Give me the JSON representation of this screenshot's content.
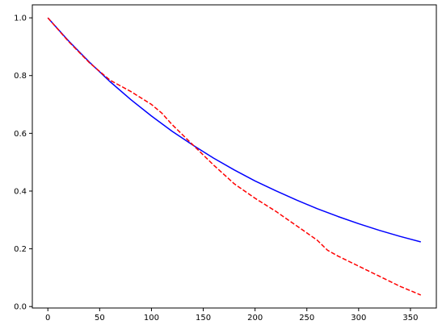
{
  "chart_data": {
    "type": "line",
    "title": "",
    "xlabel": "",
    "ylabel": "",
    "xlim": [
      -15,
      375
    ],
    "ylim": [
      -0.005,
      1.045
    ],
    "x_ticks": [
      {
        "value": 0,
        "label": "0"
      },
      {
        "value": 50,
        "label": "50"
      },
      {
        "value": 100,
        "label": "100"
      },
      {
        "value": 150,
        "label": "150"
      },
      {
        "value": 200,
        "label": "200"
      },
      {
        "value": 250,
        "label": "250"
      },
      {
        "value": 300,
        "label": "300"
      },
      {
        "value": 350,
        "label": "350"
      }
    ],
    "y_ticks": [
      {
        "value": 0.0,
        "label": "0.0"
      },
      {
        "value": 0.2,
        "label": "0.2"
      },
      {
        "value": 0.4,
        "label": "0.4"
      },
      {
        "value": 0.6,
        "label": "0.6"
      },
      {
        "value": 0.8,
        "label": "0.8"
      },
      {
        "value": 1.0,
        "label": "1.0"
      }
    ],
    "grid": false,
    "series": [
      {
        "color": "#0000ff",
        "style": "solid",
        "x": [
          0,
          20,
          40,
          60,
          80,
          100,
          120,
          140,
          160,
          180,
          200,
          220,
          240,
          260,
          280,
          300,
          320,
          340,
          360
        ],
        "y": [
          1.0,
          0.92,
          0.847,
          0.779,
          0.717,
          0.66,
          0.607,
          0.559,
          0.514,
          0.473,
          0.435,
          0.401,
          0.369,
          0.339,
          0.312,
          0.287,
          0.264,
          0.243,
          0.224
        ]
      },
      {
        "color": "#ff0000",
        "style": "dashed",
        "x": [
          0,
          20,
          40,
          60,
          80,
          100,
          110,
          120,
          140,
          160,
          180,
          200,
          220,
          240,
          260,
          270,
          280,
          300,
          320,
          340,
          360
        ],
        "y": [
          1.0,
          0.918,
          0.845,
          0.784,
          0.745,
          0.7,
          0.67,
          0.63,
          0.56,
          0.49,
          0.425,
          0.375,
          0.33,
          0.28,
          0.23,
          0.195,
          0.175,
          0.14,
          0.105,
          0.07,
          0.04
        ]
      }
    ]
  }
}
